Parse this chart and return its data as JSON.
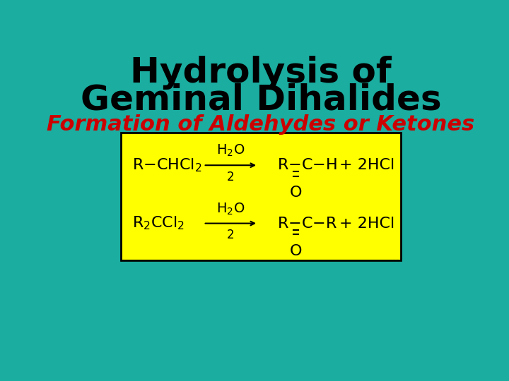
{
  "bg_color": "#1aada0",
  "title_line1": "Hydrolysis of",
  "title_line2": "Geminal Dihalides",
  "subtitle": "Formation of Aldehydes or Ketones",
  "title_color": "#000000",
  "subtitle_color": "#cc0000",
  "box_color": "#ffff00",
  "box_edge_color": "#000000",
  "text_color": "#000000",
  "title_fontsize": 36,
  "subtitle_fontsize": 22,
  "chem_fontsize": 16,
  "fig_width": 7.2,
  "fig_height": 5.4
}
